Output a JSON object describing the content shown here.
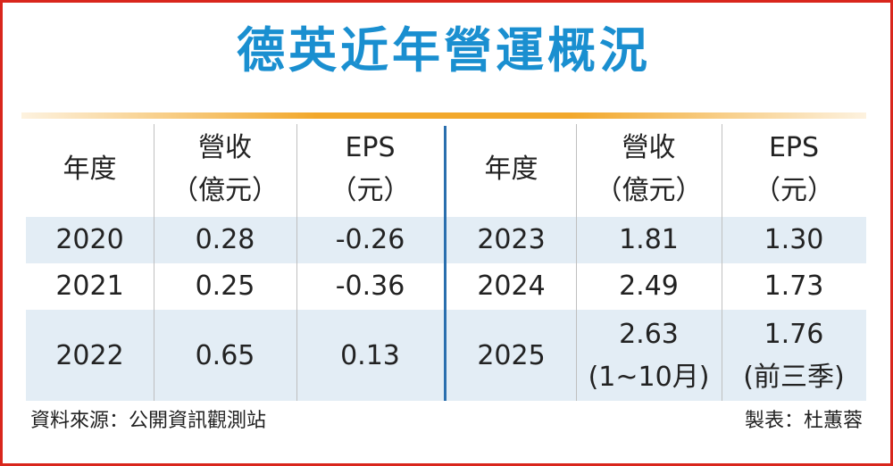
{
  "title": "德英近年營運概況",
  "headers": {
    "year": "年度",
    "revenue_line1": "營收",
    "revenue_line2": "（億元）",
    "eps_line1": "EPS",
    "eps_line2": "（元）"
  },
  "chart_data": {
    "type": "table",
    "title": "德英近年營運概況",
    "columns": [
      "年度",
      "營收（億元）",
      "EPS（元）"
    ],
    "rows_left": [
      {
        "year": "2020",
        "revenue": "0.28",
        "eps": "-0.26"
      },
      {
        "year": "2021",
        "revenue": "0.25",
        "eps": "-0.36"
      },
      {
        "year": "2022",
        "revenue": "0.65",
        "eps": "0.13"
      }
    ],
    "rows_right": [
      {
        "year": "2023",
        "revenue": "1.81",
        "eps": "1.30"
      },
      {
        "year": "2024",
        "revenue": "2.49",
        "eps": "1.73"
      },
      {
        "year": "2025",
        "revenue": "2.63",
        "revenue_note": "(1~10月)",
        "eps": "1.76",
        "eps_note": "(前三季)"
      }
    ]
  },
  "footer": {
    "source": "資料來源：公開資訊觀測站",
    "author": "製表：杜蕙蓉"
  },
  "colors": {
    "title": "#1a8fd0",
    "border": "#d9261c",
    "accent_line": "#f2a82b",
    "row_band": "#e3edf5",
    "divider": "#2a6fae"
  }
}
